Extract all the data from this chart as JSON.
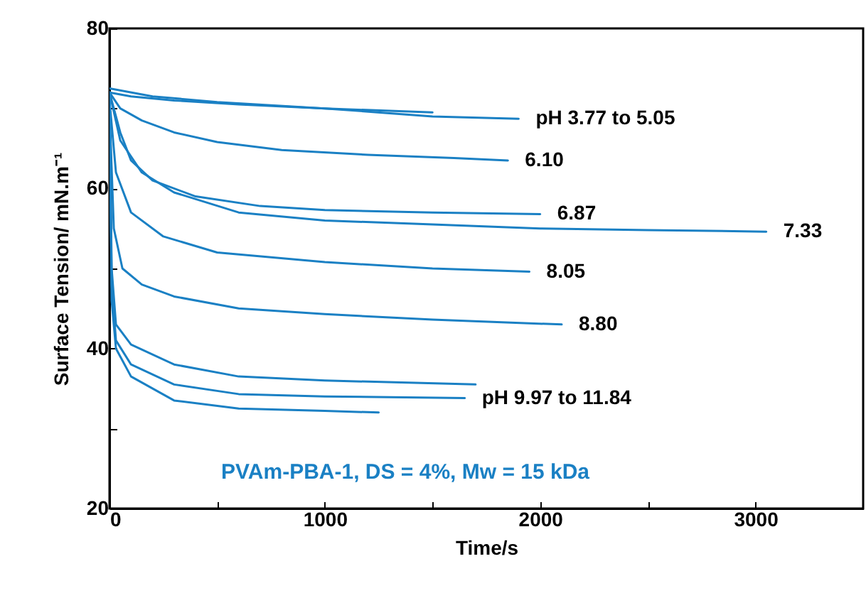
{
  "chart_data": {
    "type": "line",
    "xlabel": "Time/s",
    "ylabel": "Surface Tension/ mN.m⁻¹",
    "xlim": [
      0,
      3500
    ],
    "xticks": [
      0,
      {
        "value": 500,
        "label": null
      },
      1000,
      {
        "value": 1500,
        "label": null
      },
      2000,
      {
        "value": 2500,
        "label": null
      },
      3000
    ],
    "ylim": [
      20,
      80
    ],
    "yticks": [
      20,
      {
        "value": 30,
        "label": null
      },
      40,
      {
        "value": 50,
        "label": null
      },
      60,
      {
        "value": 70,
        "label": null
      },
      80
    ],
    "grid": false,
    "legend": false,
    "marker": "none",
    "line_style": "solid",
    "series": [
      {
        "color": "#1a80c4",
        "x": [
          0,
          100,
          300,
          600,
          1000,
          1500
        ],
        "values": [
          72,
          71.5,
          71,
          70.5,
          70,
          69.5
        ]
      },
      {
        "color": "#1a80c4",
        "x": [
          0,
          200,
          500,
          1000,
          1500,
          1900
        ],
        "values": [
          72.5,
          71.5,
          70.8,
          70,
          69,
          68.7
        ]
      },
      {
        "color": "#1a80c4",
        "x": [
          0,
          50,
          150,
          300,
          500,
          800,
          1200,
          1600,
          1850
        ],
        "values": [
          72,
          70,
          68.5,
          67,
          65.8,
          64.8,
          64.2,
          63.8,
          63.5
        ]
      },
      {
        "color": "#1a80c4",
        "x": [
          0,
          50,
          100,
          200,
          400,
          700,
          1000,
          1500,
          2000
        ],
        "values": [
          72,
          67,
          63.5,
          61,
          59,
          57.8,
          57.3,
          57,
          56.8
        ]
      },
      {
        "color": "#1a80c4",
        "x": [
          0,
          50,
          150,
          300,
          600,
          1000,
          1500,
          2000,
          2500,
          3050
        ],
        "values": [
          72,
          66,
          62,
          59.5,
          57,
          56,
          55.5,
          55,
          54.8,
          54.6
        ]
      },
      {
        "color": "#1a80c4",
        "x": [
          0,
          30,
          100,
          250,
          500,
          1000,
          1500,
          1950
        ],
        "values": [
          71,
          62,
          57,
          54,
          52,
          50.8,
          50,
          49.6
        ]
      },
      {
        "color": "#1a80c4",
        "x": [
          0,
          20,
          60,
          150,
          300,
          600,
          1000,
          1500,
          2100
        ],
        "values": [
          70,
          55,
          50,
          48,
          46.5,
          45,
          44.3,
          43.6,
          43
        ]
      },
      {
        "color": "#1a80c4",
        "x": [
          0,
          10,
          30,
          100,
          300,
          600,
          1000,
          1700
        ],
        "values": [
          72,
          50,
          43,
          40.5,
          38,
          36.5,
          36,
          35.5
        ]
      },
      {
        "color": "#1a80c4",
        "x": [
          0,
          10,
          30,
          100,
          300,
          600,
          1000,
          1650
        ],
        "values": [
          72,
          48,
          41,
          38,
          35.5,
          34.3,
          34,
          33.8
        ]
      },
      {
        "color": "#1a80c4",
        "x": [
          0,
          10,
          30,
          100,
          300,
          600,
          1000,
          1250
        ],
        "values": [
          72,
          46,
          40,
          36.5,
          33.5,
          32.5,
          32.2,
          32
        ]
      }
    ],
    "annotations": [
      {
        "text": "pH 3.77 to 5.05",
        "x": 1900,
        "y": 68.7
      },
      {
        "text": "6.10",
        "x": 1850,
        "y": 63.5
      },
      {
        "text": "6.87",
        "x": 2000,
        "y": 56.8
      },
      {
        "text": "7.33",
        "x": 3050,
        "y": 54.6
      },
      {
        "text": "8.05",
        "x": 1950,
        "y": 49.6
      },
      {
        "text": "8.80",
        "x": 2100,
        "y": 43
      },
      {
        "text": "pH 9.97 to 11.84",
        "x": 1650,
        "y": 33.8
      },
      "PVAm-PBA-1, DS = 4%, Mw = 15 kDa"
    ]
  }
}
